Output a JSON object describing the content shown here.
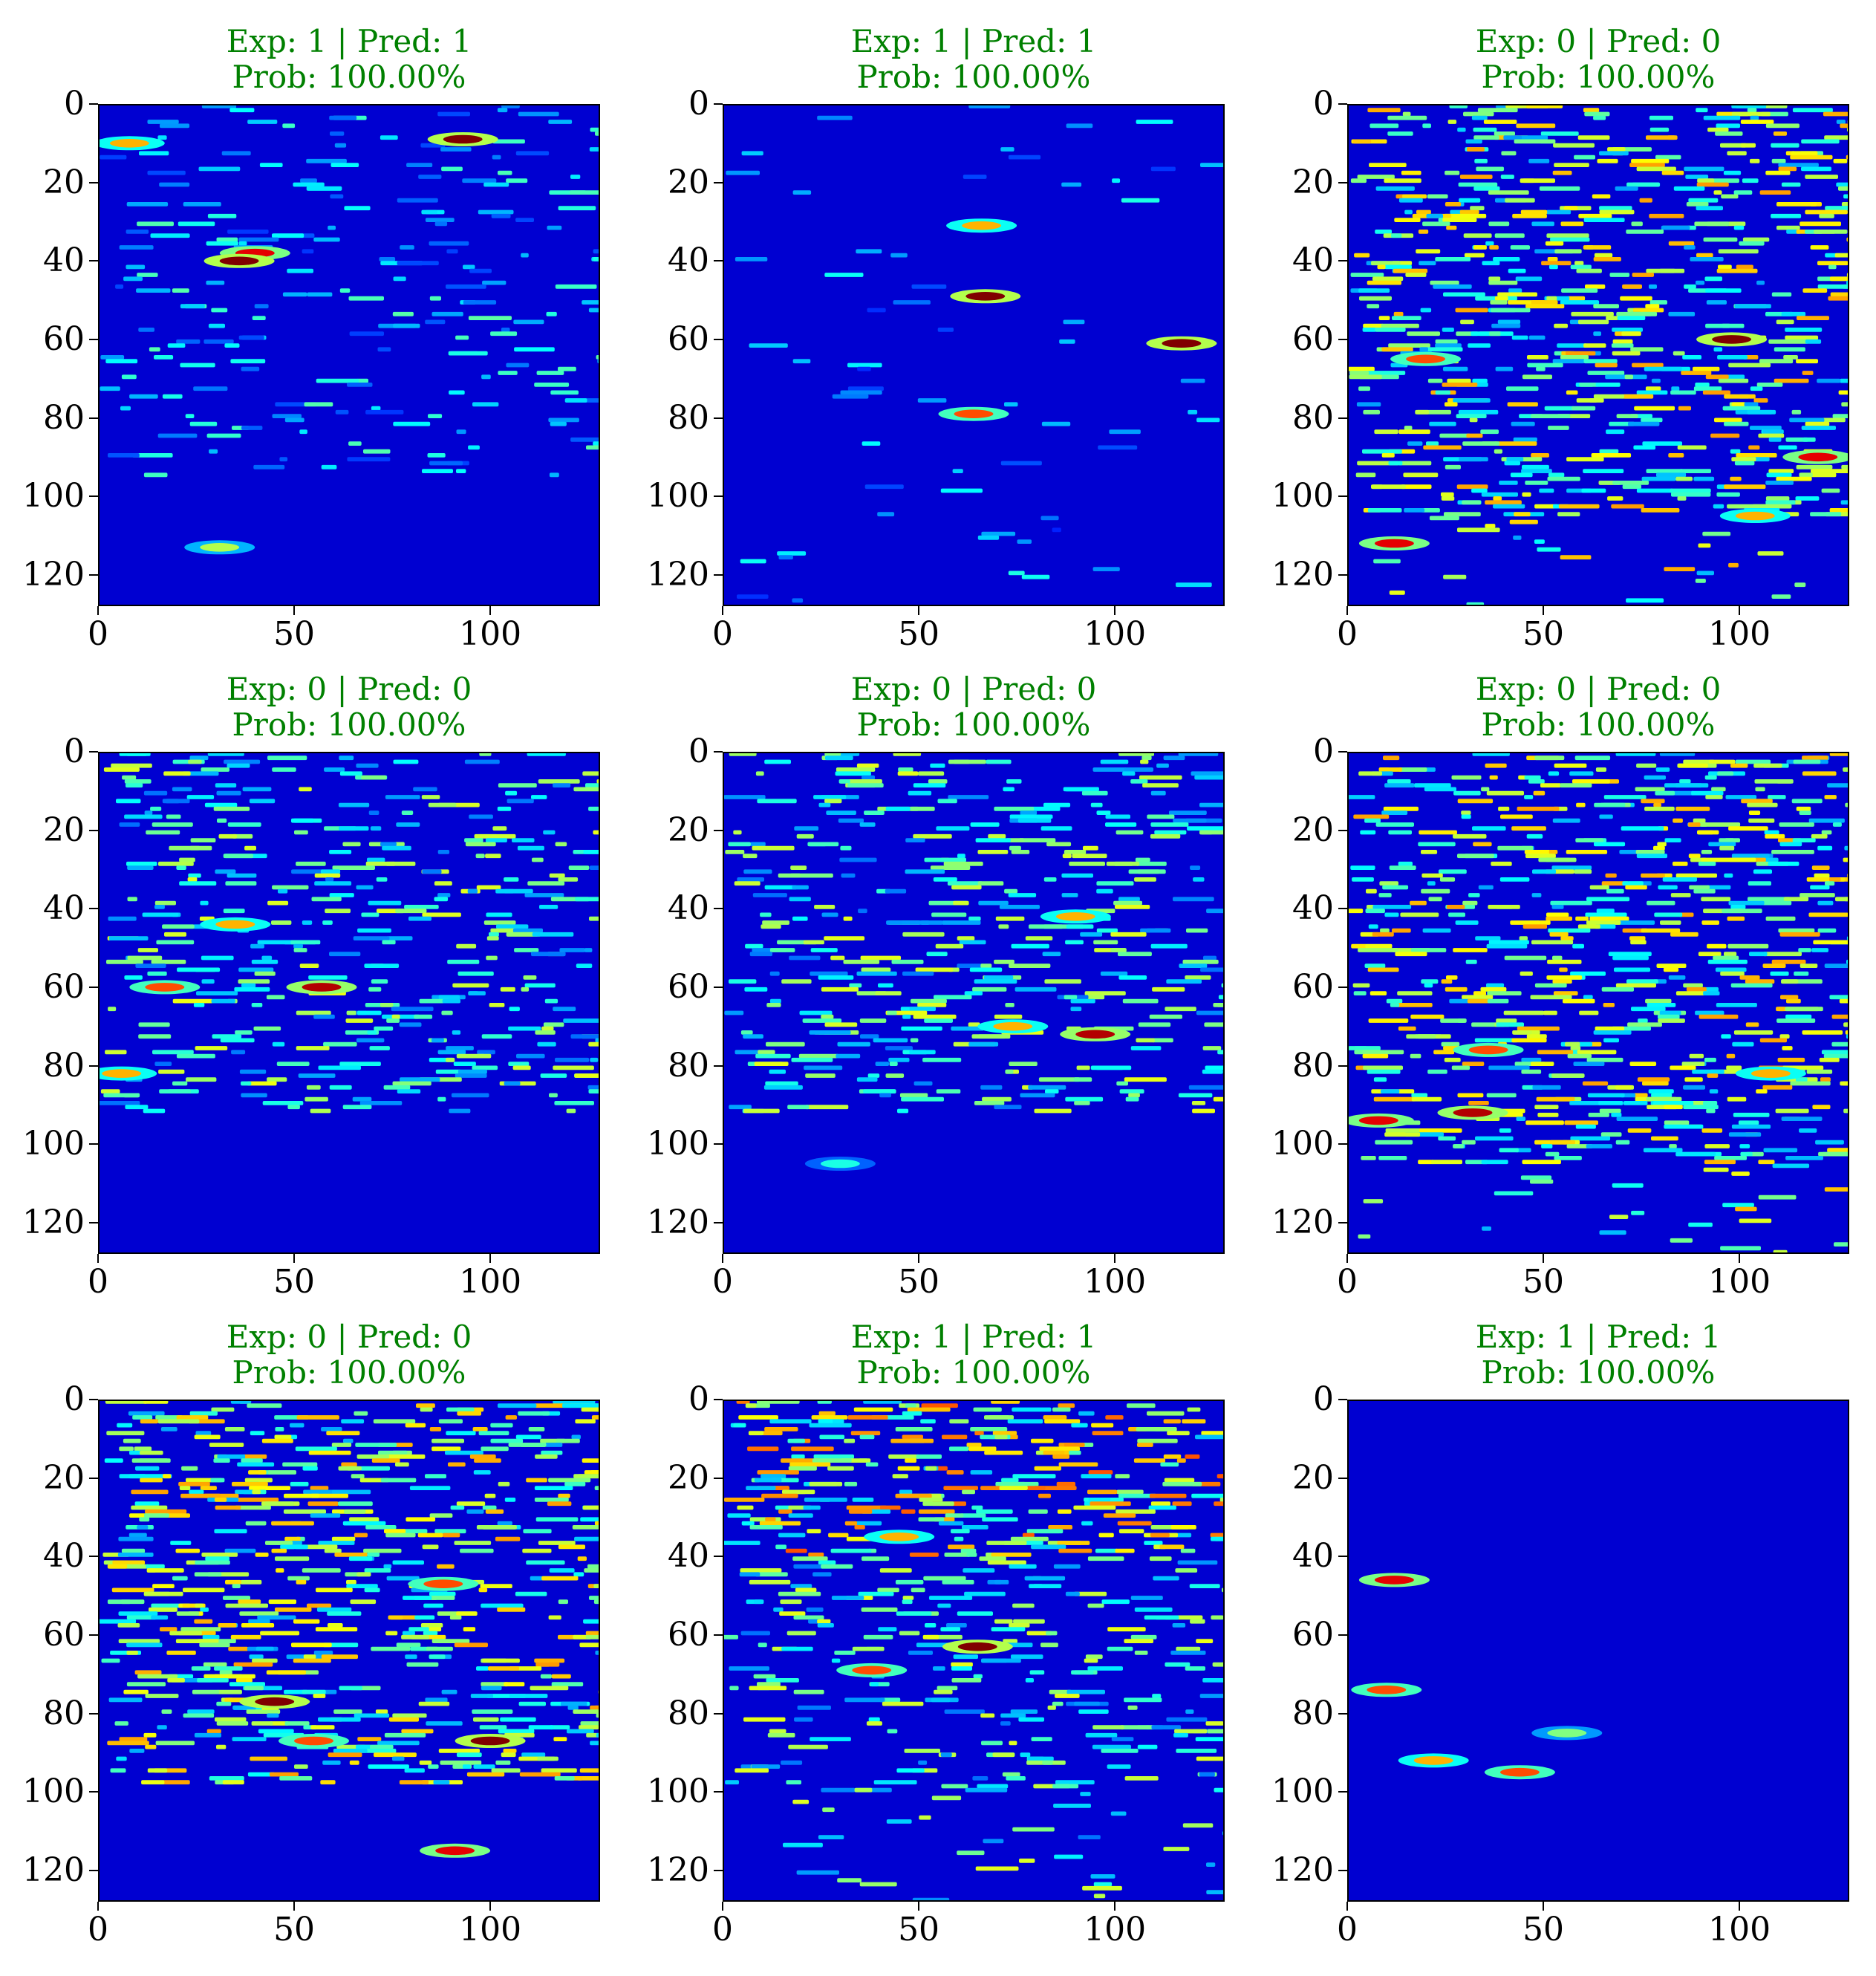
{
  "colors": {
    "title_color": "#008000",
    "colormap": "jet",
    "background": "#00008f"
  },
  "chart_data": [
    {
      "type": "heatmap",
      "title": "Exp: 1 | Pred: 1\nProb: 100.00%",
      "line1": "Exp: 1 | Pred: 1",
      "line2": "Prob: 100.00%",
      "xlim": [
        0,
        128
      ],
      "ylim": [
        128,
        0
      ],
      "xticks": [
        "0",
        "50",
        "100"
      ],
      "yticks": [
        "0",
        "20",
        "40",
        "60",
        "80",
        "100",
        "120"
      ],
      "pattern": "sparse-arcs",
      "features": [
        [
          8,
          10,
          0.7
        ],
        [
          40,
          38,
          0.9
        ],
        [
          36,
          40,
          1.0
        ],
        [
          93,
          9,
          1.0
        ],
        [
          31,
          113,
          0.55
        ]
      ]
    },
    {
      "type": "heatmap",
      "title": "Exp: 1 | Pred: 1\nProb: 100.00%",
      "line1": "Exp: 1 | Pred: 1",
      "line2": "Prob: 100.00%",
      "xlim": [
        0,
        128
      ],
      "ylim": [
        128,
        0
      ],
      "xticks": [
        "0",
        "50",
        "100"
      ],
      "yticks": [
        "0",
        "20",
        "40",
        "60",
        "80",
        "100",
        "120"
      ],
      "pattern": "call-arcs",
      "features": [
        [
          66,
          31,
          0.7
        ],
        [
          67,
          49,
          1.0
        ],
        [
          64,
          79,
          0.8
        ],
        [
          117,
          61,
          1.0
        ]
      ]
    },
    {
      "type": "heatmap",
      "title": "Exp: 0 | Pred: 0\nProb: 100.00%",
      "line1": "Exp: 0 | Pred: 0",
      "line2": "Prob: 100.00%",
      "xlim": [
        0,
        128
      ],
      "ylim": [
        128,
        0
      ],
      "xticks": [
        "0",
        "50",
        "100"
      ],
      "yticks": [
        "0",
        "20",
        "40",
        "60",
        "80",
        "100",
        "120"
      ],
      "pattern": "dense-noise",
      "features": [
        [
          98,
          60,
          1.0
        ],
        [
          20,
          65,
          0.8
        ],
        [
          120,
          90,
          0.9
        ],
        [
          12,
          112,
          0.9
        ],
        [
          104,
          105,
          0.7
        ]
      ]
    },
    {
      "type": "heatmap",
      "title": "Exp: 0 | Pred: 0\nProb: 100.00%",
      "line1": "Exp: 0 | Pred: 0",
      "line2": "Prob: 100.00%",
      "xlim": [
        0,
        128
      ],
      "ylim": [
        128,
        0
      ],
      "xticks": [
        "0",
        "50",
        "100"
      ],
      "yticks": [
        "0",
        "20",
        "40",
        "60",
        "80",
        "100",
        "120"
      ],
      "pattern": "medium-noise",
      "features": [
        [
          57,
          60,
          0.95
        ],
        [
          17,
          60,
          0.8
        ],
        [
          6,
          82,
          0.7
        ],
        [
          35,
          44,
          0.7
        ]
      ]
    },
    {
      "type": "heatmap",
      "title": "Exp: 0 | Pred: 0\nProb: 100.00%",
      "line1": "Exp: 0 | Pred: 0",
      "line2": "Prob: 100.00%",
      "xlim": [
        0,
        128
      ],
      "ylim": [
        128,
        0
      ],
      "xticks": [
        "0",
        "50",
        "100"
      ],
      "yticks": [
        "0",
        "20",
        "40",
        "60",
        "80",
        "100",
        "120"
      ],
      "pattern": "medium-noise",
      "features": [
        [
          95,
          72,
          0.95
        ],
        [
          74,
          70,
          0.7
        ],
        [
          90,
          42,
          0.7
        ],
        [
          30,
          105,
          0.4
        ]
      ]
    },
    {
      "type": "heatmap",
      "title": "Exp: 0 | Pred: 0\nProb: 100.00%",
      "line1": "Exp: 0 | Pred: 0",
      "line2": "Prob: 100.00%",
      "xlim": [
        0,
        128
      ],
      "ylim": [
        128,
        0
      ],
      "xticks": [
        "0",
        "50",
        "100"
      ],
      "yticks": [
        "0",
        "20",
        "40",
        "60",
        "80",
        "100",
        "120"
      ],
      "pattern": "dense-noise",
      "features": [
        [
          32,
          92,
          0.95
        ],
        [
          8,
          94,
          0.9
        ],
        [
          36,
          76,
          0.8
        ],
        [
          108,
          82,
          0.7
        ]
      ]
    },
    {
      "type": "heatmap",
      "title": "Exp: 0 | Pred: 0\nProb: 100.00%",
      "line1": "Exp: 0 | Pred: 0",
      "line2": "Prob: 100.00%",
      "xlim": [
        0,
        128
      ],
      "ylim": [
        128,
        0
      ],
      "xticks": [
        "0",
        "50",
        "100"
      ],
      "yticks": [
        "0",
        "20",
        "40",
        "60",
        "80",
        "100",
        "120"
      ],
      "pattern": "horizontal-bands",
      "features": [
        [
          45,
          77,
          1.0
        ],
        [
          100,
          87,
          1.0
        ],
        [
          91,
          115,
          0.9
        ],
        [
          55,
          87,
          0.8
        ],
        [
          88,
          47,
          0.8
        ]
      ]
    },
    {
      "type": "heatmap",
      "title": "Exp: 1 | Pred: 1\nProb: 100.00%",
      "line1": "Exp: 1 | Pred: 1",
      "line2": "Prob: 100.00%",
      "xlim": [
        0,
        128
      ],
      "ylim": [
        128,
        0
      ],
      "xticks": [
        "0",
        "50",
        "100"
      ],
      "yticks": [
        "0",
        "20",
        "40",
        "60",
        "80",
        "100",
        "120"
      ],
      "pattern": "upper-dense-arc",
      "features": [
        [
          65,
          63,
          1.0
        ],
        [
          38,
          69,
          0.8
        ],
        [
          45,
          35,
          0.7
        ]
      ]
    },
    {
      "type": "heatmap",
      "title": "Exp: 1 | Pred: 1\nProb: 100.00%",
      "line1": "Exp: 1 | Pred: 1",
      "line2": "Prob: 100.00%",
      "xlim": [
        0,
        128
      ],
      "ylim": [
        128,
        0
      ],
      "xticks": [
        "0",
        "50",
        "100"
      ],
      "yticks": [
        "0",
        "20",
        "40",
        "60",
        "80",
        "100",
        "120"
      ],
      "pattern": "sparse-dots",
      "features": [
        [
          12,
          46,
          0.9
        ],
        [
          10,
          74,
          0.8
        ],
        [
          22,
          92,
          0.7
        ],
        [
          44,
          95,
          0.8
        ],
        [
          56,
          85,
          0.5
        ]
      ]
    }
  ]
}
